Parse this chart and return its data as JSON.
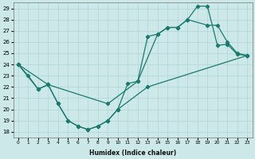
{
  "xlabel": "Humidex (Indice chaleur)",
  "xlim": [
    -0.5,
    23.5
  ],
  "ylim": [
    17.5,
    29.5
  ],
  "yticks": [
    18,
    19,
    20,
    21,
    22,
    23,
    24,
    25,
    26,
    27,
    28,
    29
  ],
  "xticks": [
    0,
    1,
    2,
    3,
    4,
    5,
    6,
    7,
    8,
    9,
    10,
    11,
    12,
    13,
    14,
    15,
    16,
    17,
    18,
    19,
    20,
    21,
    22,
    23
  ],
  "bg_color": "#cce8e8",
  "line_color": "#1a7a6e",
  "grid_color": "#aed4d4",
  "line1_x": [
    0,
    1,
    2,
    3,
    4,
    5,
    6,
    7,
    8,
    9,
    10,
    11,
    12,
    13,
    14,
    15,
    16,
    17,
    18,
    19,
    20,
    21,
    22,
    23
  ],
  "line1_y": [
    24.0,
    23.0,
    21.8,
    22.2,
    20.5,
    19.0,
    18.5,
    18.2,
    18.5,
    19.0,
    20.0,
    22.3,
    22.5,
    26.5,
    26.7,
    27.3,
    27.3,
    28.0,
    29.2,
    29.2,
    25.7,
    25.8,
    24.9,
    24.8
  ],
  "line2_x": [
    0,
    2,
    3,
    9,
    12,
    14,
    15,
    16,
    17,
    19,
    20,
    21,
    22,
    23
  ],
  "line2_y": [
    24.0,
    21.8,
    22.2,
    20.5,
    22.5,
    26.7,
    27.3,
    27.3,
    28.0,
    27.5,
    27.5,
    26.0,
    25.0,
    24.8
  ],
  "line3_x": [
    0,
    3,
    4,
    5,
    6,
    7,
    8,
    9,
    10,
    13,
    23
  ],
  "line3_y": [
    24.0,
    22.2,
    20.5,
    19.0,
    18.5,
    18.2,
    18.5,
    19.0,
    20.0,
    22.0,
    24.8
  ]
}
